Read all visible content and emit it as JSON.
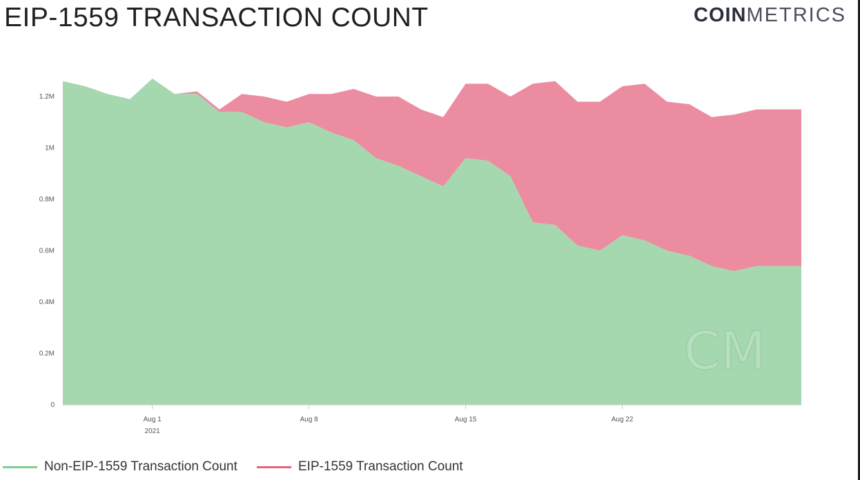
{
  "header": {
    "title": "EIP-1559 TRANSACTION COUNT",
    "logo_bold": "COIN",
    "logo_light": "METRICS"
  },
  "colors": {
    "non_eip": "#a6d8b0",
    "eip": "#ec8ca1",
    "legend_non_eip": "#7ccf8d",
    "legend_eip": "#e5607e"
  },
  "chart_data": {
    "type": "area",
    "stacked": true,
    "x_start": "2021-07-28",
    "x": [
      "2021-07-28",
      "2021-07-29",
      "2021-07-30",
      "2021-07-31",
      "2021-08-01",
      "2021-08-02",
      "2021-08-03",
      "2021-08-04",
      "2021-08-05",
      "2021-08-06",
      "2021-08-07",
      "2021-08-08",
      "2021-08-09",
      "2021-08-10",
      "2021-08-11",
      "2021-08-12",
      "2021-08-13",
      "2021-08-14",
      "2021-08-15",
      "2021-08-16",
      "2021-08-17",
      "2021-08-18",
      "2021-08-19",
      "2021-08-20",
      "2021-08-21",
      "2021-08-22",
      "2021-08-23",
      "2021-08-24",
      "2021-08-25",
      "2021-08-26",
      "2021-08-27",
      "2021-08-28",
      "2021-08-29",
      "2021-08-30"
    ],
    "series": [
      {
        "name": "Non-EIP-1559 Transaction Count",
        "values": [
          1.26,
          1.24,
          1.21,
          1.19,
          1.27,
          1.21,
          1.21,
          1.14,
          1.14,
          1.1,
          1.08,
          1.1,
          1.06,
          1.03,
          0.96,
          0.93,
          0.89,
          0.85,
          0.96,
          0.95,
          0.89,
          0.71,
          0.7,
          0.62,
          0.6,
          0.66,
          0.64,
          0.6,
          0.58,
          0.54,
          0.52,
          0.54,
          0.54,
          0.54
        ]
      },
      {
        "name": "EIP-1559 Transaction Count",
        "values": [
          0,
          0,
          0,
          0,
          0,
          0,
          0.01,
          0.01,
          0.07,
          0.1,
          0.1,
          0.11,
          0.15,
          0.2,
          0.24,
          0.27,
          0.26,
          0.27,
          0.29,
          0.3,
          0.31,
          0.54,
          0.56,
          0.56,
          0.58,
          0.58,
          0.61,
          0.58,
          0.59,
          0.58,
          0.61,
          0.61,
          0.61,
          0.61
        ]
      }
    ],
    "y_ticks": [
      "0",
      "0.2M",
      "0.4M",
      "0.6M",
      "0.8M",
      "1M",
      "1.2M"
    ],
    "y_tick_values": [
      0,
      0.2,
      0.4,
      0.6,
      0.8,
      1.0,
      1.2
    ],
    "ylim": [
      0,
      1.3
    ],
    "x_ticks": [
      {
        "date": "2021-08-01",
        "label": "Aug 1",
        "sublabel": "2021"
      },
      {
        "date": "2021-08-08",
        "label": "Aug 8",
        "sublabel": ""
      },
      {
        "date": "2021-08-15",
        "label": "Aug 15",
        "sublabel": ""
      },
      {
        "date": "2021-08-22",
        "label": "Aug 22",
        "sublabel": ""
      }
    ],
    "grid": false,
    "legend": "bottom",
    "watermark": "CM"
  }
}
